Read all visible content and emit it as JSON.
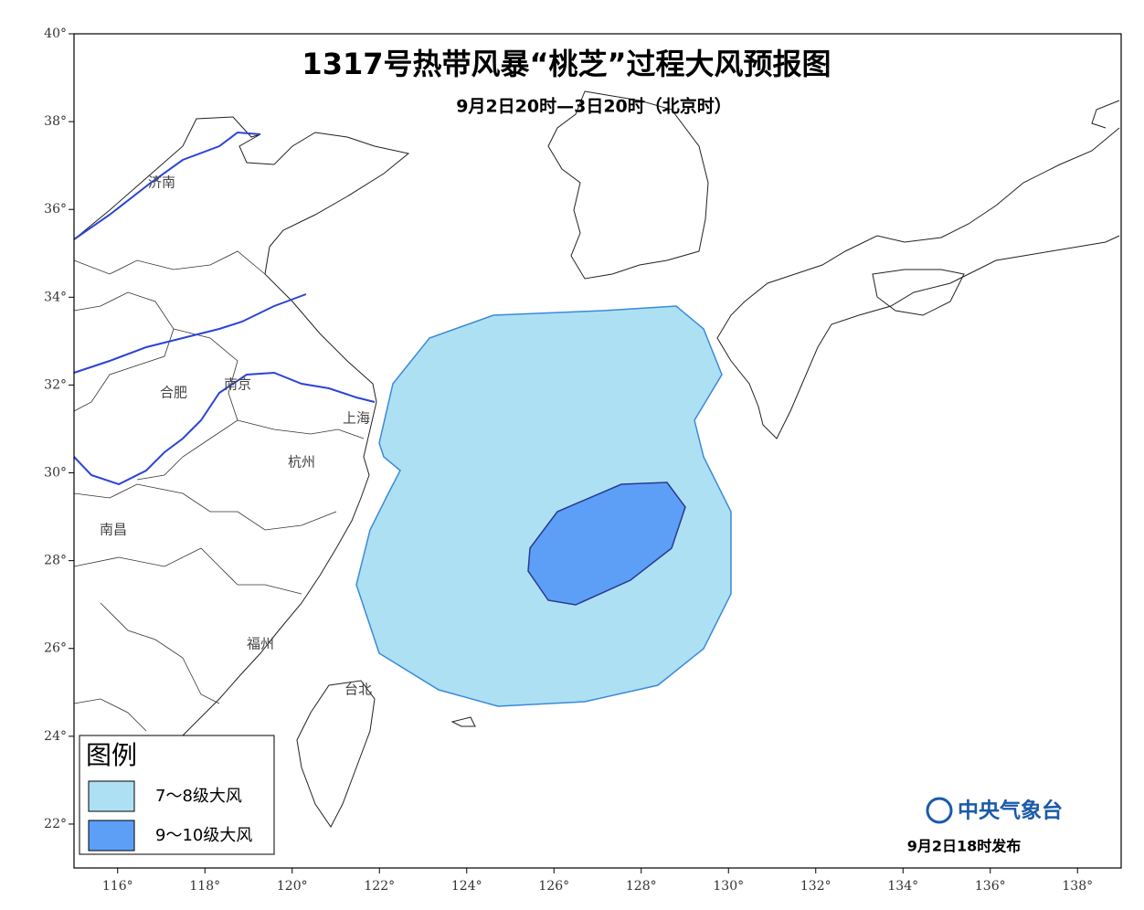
{
  "title": "1317号热带风暴“桃芝”过程大风预报图",
  "subtitle": "9月2日20时—3日20时（北京时）",
  "map": {
    "xlim": [
      115,
      139
    ],
    "ylim": [
      21,
      40
    ],
    "xticks": [
      {
        "value": 116,
        "label": "116°"
      },
      {
        "value": 118,
        "label": "118°"
      },
      {
        "value": 120,
        "label": "120°"
      },
      {
        "value": 122,
        "label": "122°"
      },
      {
        "value": 124,
        "label": "124°"
      },
      {
        "value": 126,
        "label": "126°"
      },
      {
        "value": 128,
        "label": "128°"
      },
      {
        "value": 130,
        "label": "130°"
      },
      {
        "value": 132,
        "label": "132°"
      },
      {
        "value": 134,
        "label": "134°"
      },
      {
        "value": 136,
        "label": "136°"
      },
      {
        "value": 138,
        "label": "138°"
      }
    ],
    "yticks": [
      {
        "value": 22,
        "label": "22°"
      },
      {
        "value": 24,
        "label": "24°"
      },
      {
        "value": 26,
        "label": "26°"
      },
      {
        "value": 28,
        "label": "28°"
      },
      {
        "value": 30,
        "label": "30°"
      },
      {
        "value": 32,
        "label": "32°"
      },
      {
        "value": 34,
        "label": "34°"
      },
      {
        "value": 36,
        "label": "36°"
      },
      {
        "value": 38,
        "label": "38°"
      },
      {
        "value": 40,
        "label": "40°"
      }
    ],
    "cities": [
      "济南",
      "合肥",
      "南京",
      "上海",
      "杭州",
      "南昌",
      "福州",
      "台北"
    ]
  },
  "legend": {
    "title": "图例",
    "items": [
      {
        "label": "7～8级大风",
        "color": "#aee0f3"
      },
      {
        "label": "9～10级大风",
        "color": "#5d9ff6"
      }
    ]
  },
  "footer": {
    "agency": "中央气象台",
    "issued": "9月2日18时发布"
  }
}
